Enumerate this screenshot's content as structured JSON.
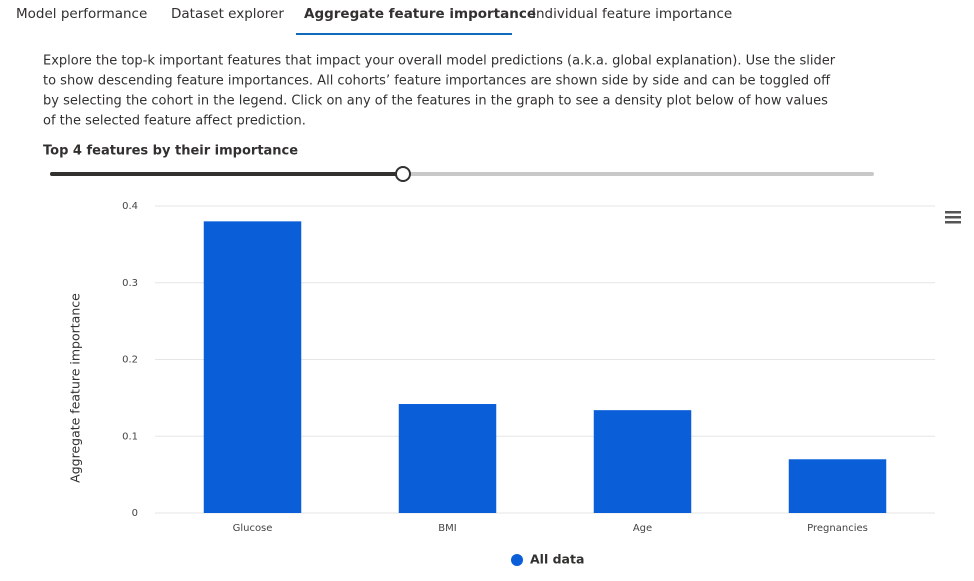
{
  "tabs": [
    "Model performance",
    "Dataset explorer",
    "Aggregate feature importance",
    "Individual feature importance"
  ],
  "active_tab": 2,
  "description": [
    "Explore the top-k important features that impact your overall model predictions (a.k.a. global explanation). Use the slider",
    "to show descending feature importances. All cohorts’ feature importances are shown side by side and can be toggled off",
    "by selecting the cohort in the legend. Click on any of the features in the graph to see a density plot below of how values",
    "of the selected feature affect prediction."
  ],
  "slider_label": "Top 4 features by their importance",
  "chart_data": {
    "type": "bar",
    "y_label": "Aggregate feature importance",
    "categories": [
      "Glucose",
      "BMI",
      "Age",
      "Pregnancies"
    ],
    "series": [
      {
        "name": "All data",
        "color": "#0a5fd8",
        "values": [
          0.38,
          0.142,
          0.134,
          0.07
        ]
      }
    ],
    "ylim": [
      0,
      0.4
    ],
    "yticks": [
      0,
      0.1,
      0.2,
      0.3,
      0.4
    ],
    "grid": true,
    "legend": "bottom"
  }
}
